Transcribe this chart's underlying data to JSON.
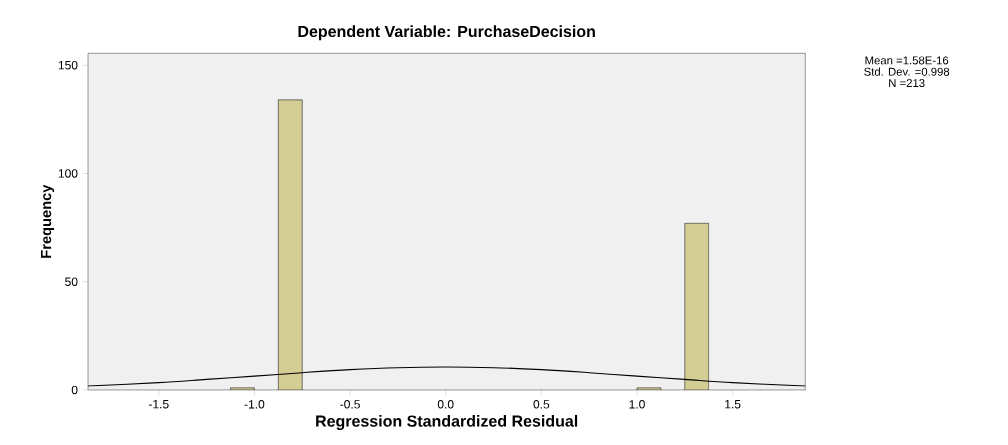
{
  "chart_data": {
    "type": "histogram",
    "title": "Dependent Variable: PurchaseDecision",
    "xlabel": "Regression Standardized Residual",
    "ylabel": "Frequency",
    "bins": [
      -1.125,
      -1.0,
      -0.875,
      -0.75,
      -0.625,
      -0.5,
      -0.375,
      -0.25,
      -0.125,
      0.0,
      0.125,
      0.25,
      0.375,
      0.5,
      0.625,
      0.75,
      0.875,
      1.0,
      1.125,
      1.25,
      1.375
    ],
    "values": [
      1,
      0,
      134,
      0,
      0,
      0,
      0,
      0,
      0,
      0,
      0,
      0,
      0,
      0,
      0,
      0,
      0,
      1,
      0,
      77
    ],
    "color": "#d4cd94",
    "series": [
      {
        "type": "line",
        "color": "#000000",
        "x": [
          -1.87,
          -1.5,
          -1.25,
          -1.0,
          -0.75,
          -0.5,
          -0.25,
          0.0,
          0.25,
          0.5,
          0.75,
          1.0,
          1.25,
          1.5,
          1.88
        ],
        "values": [
          1.8,
          3.4,
          4.9,
          6.4,
          8.0,
          9.4,
          10.3,
          10.6,
          10.3,
          9.4,
          8.0,
          6.4,
          4.9,
          3.4,
          1.8
        ]
      }
    ],
    "xlim": [
      -1.87,
      1.88
    ],
    "ylim": [
      0,
      155.5
    ],
    "xticks": [
      {
        "value": -1.5,
        "label": "-1.5"
      },
      {
        "value": -1.0,
        "label": "-1.0"
      },
      {
        "value": -0.5,
        "label": "-0.5"
      },
      {
        "value": 0.0,
        "label": "0.0"
      },
      {
        "value": 0.5,
        "label": "0.5"
      },
      {
        "value": 1.0,
        "label": "1.0"
      },
      {
        "value": 1.5,
        "label": "1.5"
      }
    ],
    "yticks": [
      0,
      50,
      100,
      150
    ],
    "annotations": [
      "Mean =1.58E-16",
      "Std. Dev. =0.998",
      "N =213"
    ]
  }
}
